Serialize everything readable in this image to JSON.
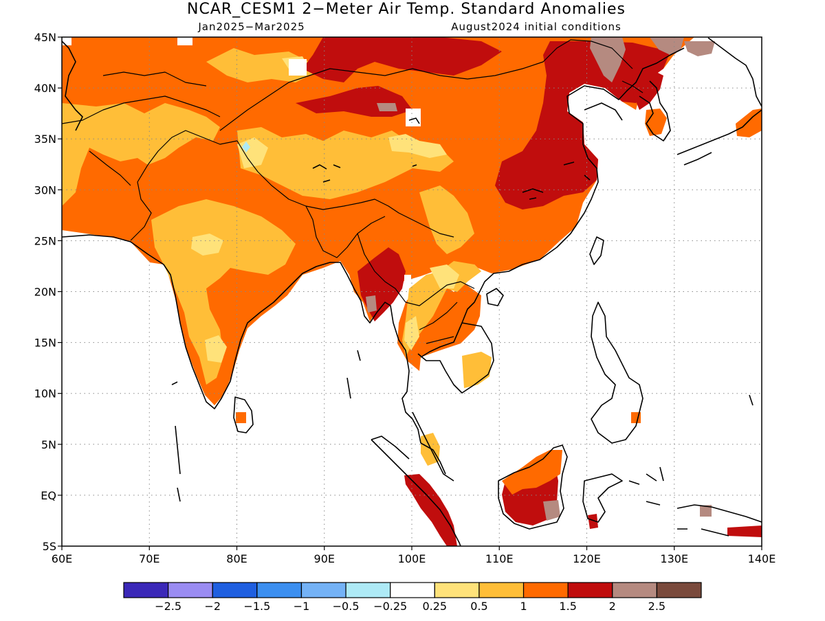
{
  "title": "NCAR_CESM1 2−Meter Air Temp. Standard Anomalies",
  "subtitle_left": "Jan2025−Mar2025",
  "subtitle_right": "August2024 initial conditions",
  "map": {
    "projection": "lat-lon",
    "region": "South / East / Southeast Asia",
    "lon_range": [
      60,
      140
    ],
    "lat_range": [
      -5,
      45
    ],
    "grid": "dotted",
    "x_tick_labels": [
      "60E",
      "70E",
      "80E",
      "90E",
      "100E",
      "110E",
      "120E",
      "130E",
      "140E"
    ],
    "y_tick_labels": [
      "45N",
      "40N",
      "35N",
      "30N",
      "25N",
      "20N",
      "15N",
      "10N",
      "5N",
      "EQ",
      "5S"
    ]
  },
  "colorbar": {
    "colors": [
      "#3b28b8",
      "#9a8cf2",
      "#1f5fe0",
      "#3c8ff0",
      "#74b2f6",
      "#aeeaf6",
      "#ffffff",
      "#ffe27a",
      "#ffbe38",
      "#ff6a00",
      "#c00d0d",
      "#b58a80",
      "#7a4a3c"
    ],
    "labels": [
      "−2.5",
      "−2",
      "−1.5",
      "−1",
      "−0.5",
      "−0.25",
      "0.25",
      "0.5",
      "1",
      "1.5",
      "2",
      "2.5"
    ]
  },
  "colors": {
    "band_025_05": "#ffe27a",
    "band_05_1": "#ffbe38",
    "band_1_15": "#ff6a00",
    "band_15_2": "#c00d0d",
    "band_2_25": "#b58a80",
    "band_gt_25": "#7a4a3c",
    "band_light_blue": "#aeeaf6"
  }
}
